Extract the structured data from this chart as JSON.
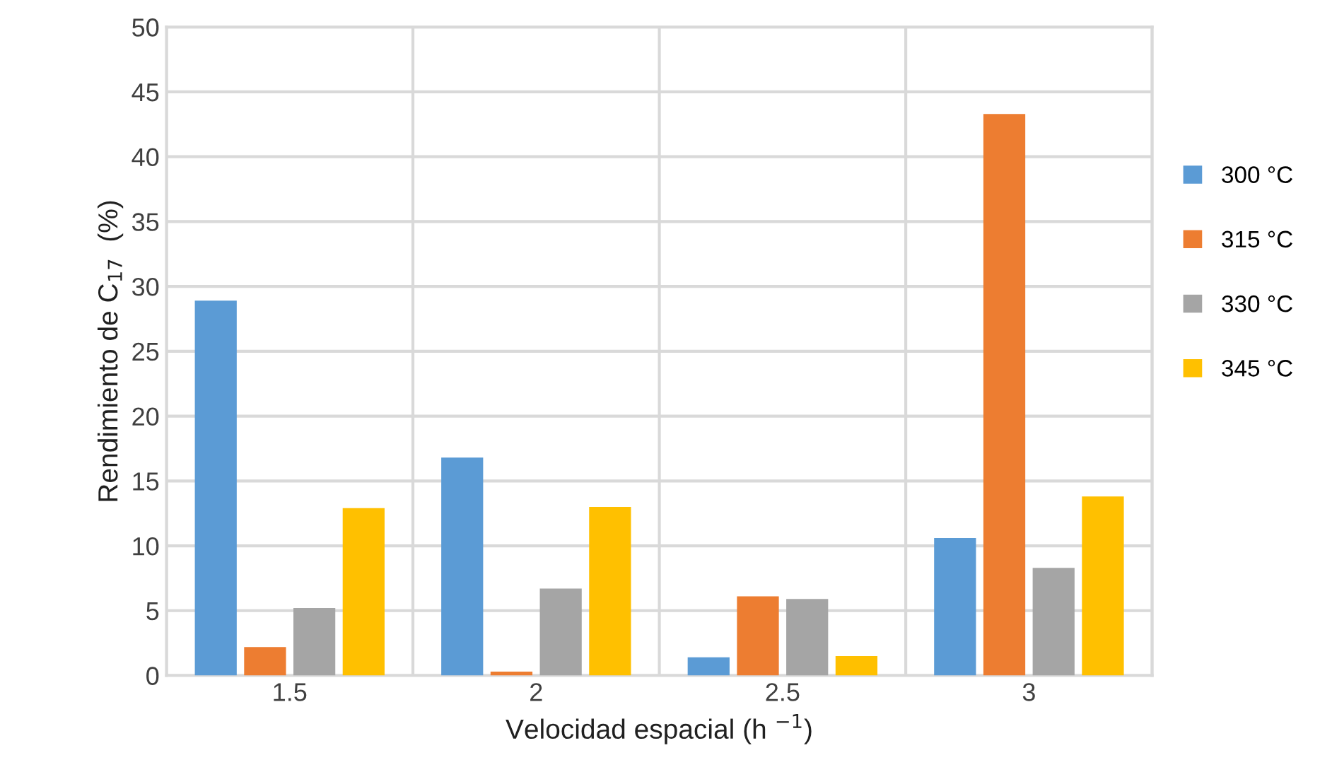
{
  "chart_data": {
    "type": "bar",
    "xlabel": "Velocidad espacial (h $^{−1}$)",
    "ylabel": "Rendimiento de C$_{17}$  (%)",
    "categories": [
      "1.5",
      "2",
      "2.5",
      "3"
    ],
    "series": [
      {
        "name": "300 °C",
        "color": "#5b9bd5",
        "values": [
          28.9,
          16.8,
          1.4,
          10.6
        ]
      },
      {
        "name": "315 °C",
        "color": "#ed7d31",
        "values": [
          2.2,
          0.3,
          6.1,
          43.3
        ]
      },
      {
        "name": "330 °C",
        "color": "#a5a5a5",
        "values": [
          5.2,
          6.7,
          5.9,
          8.3
        ]
      },
      {
        "name": "345 °C",
        "color": "#ffc000",
        "values": [
          12.9,
          13.0,
          1.5,
          13.8
        ]
      }
    ],
    "ylim": [
      0,
      50
    ],
    "yticks": [
      0,
      5,
      10,
      15,
      20,
      25,
      30,
      35,
      40,
      45,
      50
    ],
    "grid": true,
    "legend": "right"
  }
}
